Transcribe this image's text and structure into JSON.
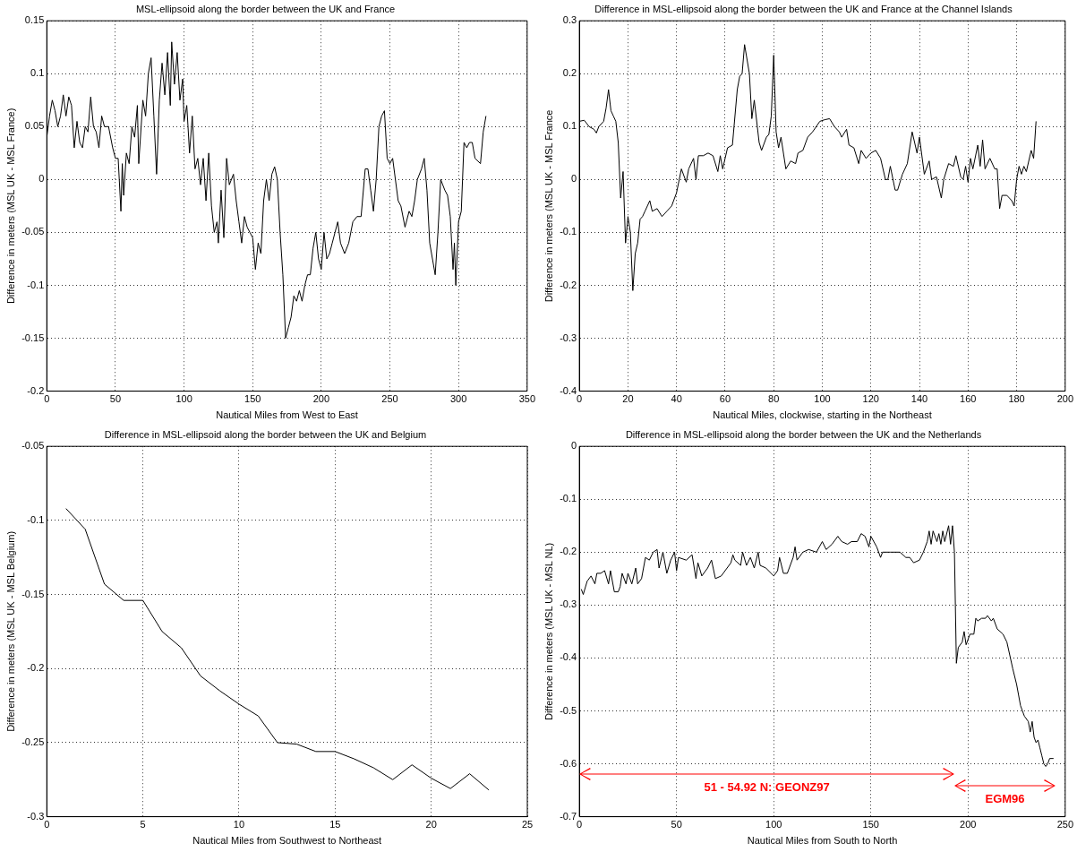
{
  "chart_data": [
    {
      "type": "line",
      "title": "MSL-ellipsoid along the border between the UK and France",
      "xlabel": "Nautical Miles from West to East",
      "ylabel": "Difference in meters (MSL UK - MSL France)",
      "color": "#000000",
      "grid": true,
      "xlim": [
        0,
        350
      ],
      "xticks": [
        0,
        50,
        100,
        150,
        200,
        250,
        300,
        350
      ],
      "ylim": [
        -0.2,
        0.15
      ],
      "yticks": [
        -0.2,
        -0.15,
        -0.1,
        -0.05,
        0,
        0.05,
        0.1,
        0.15
      ],
      "x": [
        0,
        2,
        4,
        6,
        8,
        10,
        12,
        14,
        16,
        18,
        20,
        22,
        24,
        26,
        28,
        30,
        32,
        34,
        36,
        38,
        40,
        42,
        45,
        48,
        50,
        52,
        54,
        55,
        56,
        58,
        60,
        62,
        64,
        66,
        67,
        70,
        72,
        74,
        76,
        78,
        80,
        82,
        84,
        86,
        88,
        90,
        91,
        93,
        95,
        97,
        99,
        100,
        102,
        104,
        106,
        108,
        110,
        112,
        114,
        116,
        118,
        120,
        122,
        124,
        125,
        127,
        129,
        131,
        133,
        136,
        138,
        140,
        142,
        144,
        146,
        148,
        150,
        152,
        154,
        156,
        158,
        160,
        162,
        164,
        166,
        168,
        170,
        172,
        174,
        176,
        178,
        180,
        182,
        184,
        186,
        188,
        190,
        192,
        194,
        196,
        198,
        200,
        202,
        204,
        206,
        208,
        212,
        214,
        217,
        220,
        223,
        226,
        229,
        232,
        234,
        236,
        238,
        240,
        242,
        244,
        246,
        248,
        250,
        252,
        254,
        256,
        258,
        261,
        264,
        266,
        268,
        270,
        273,
        275,
        277,
        279,
        283,
        285,
        287,
        290,
        292,
        294,
        296,
        297,
        298,
        300,
        302,
        304,
        306,
        308,
        310,
        312,
        316,
        318,
        320
      ],
      "values": [
        0.04,
        0.06,
        0.075,
        0.065,
        0.05,
        0.06,
        0.08,
        0.06,
        0.078,
        0.07,
        0.03,
        0.055,
        0.035,
        0.03,
        0.05,
        0.045,
        0.078,
        0.05,
        0.045,
        0.03,
        0.06,
        0.05,
        0.05,
        0.03,
        0.02,
        0.02,
        -0.03,
        0.015,
        -0.015,
        0.025,
        0.015,
        0.05,
        0.04,
        0.07,
        0.015,
        0.075,
        0.06,
        0.1,
        0.115,
        0.06,
        0.005,
        0.075,
        0.11,
        0.08,
        0.12,
        0.07,
        0.13,
        0.09,
        0.12,
        0.075,
        0.095,
        0.055,
        0.07,
        0.025,
        0.06,
        0.01,
        0.02,
        -0.005,
        0.02,
        -0.02,
        0.025,
        -0.025,
        -0.05,
        -0.04,
        -0.06,
        -0.01,
        -0.055,
        0.02,
        -0.005,
        0.005,
        -0.02,
        -0.04,
        -0.06,
        -0.035,
        -0.045,
        -0.05,
        -0.055,
        -0.085,
        -0.06,
        -0.07,
        -0.02,
        0,
        -0.02,
        0.005,
        0.012,
        0,
        -0.05,
        -0.09,
        -0.15,
        -0.14,
        -0.13,
        -0.11,
        -0.115,
        -0.105,
        -0.115,
        -0.1,
        -0.09,
        -0.09,
        -0.065,
        -0.05,
        -0.075,
        -0.085,
        -0.05,
        -0.075,
        -0.07,
        -0.06,
        -0.04,
        -0.06,
        -0.07,
        -0.06,
        -0.04,
        -0.035,
        -0.035,
        0.01,
        0.01,
        -0.01,
        -0.03,
        0,
        0.05,
        0.06,
        0.065,
        0.02,
        0.015,
        0.02,
        0,
        -0.02,
        -0.025,
        -0.045,
        -0.03,
        -0.035,
        -0.02,
        0,
        0.01,
        0.02,
        -0.01,
        -0.06,
        -0.09,
        -0.05,
        0,
        -0.01,
        -0.015,
        -0.035,
        -0.085,
        -0.06,
        -0.1,
        -0.04,
        -0.03,
        0.035,
        0.03,
        0.035,
        0.035,
        0.02,
        0.015,
        0.045,
        0.06
      ]
    },
    {
      "type": "line",
      "title": "Difference in MSL-ellipsoid along the border between the UK and France at the Channel Islands",
      "xlabel": "Nautical Miles, clockwise, starting in the Northeast",
      "ylabel": "Difference in meters (MSL UK - MSL France",
      "color": "#000000",
      "grid": true,
      "xlim": [
        0,
        200
      ],
      "xticks": [
        0,
        20,
        40,
        60,
        80,
        100,
        120,
        140,
        160,
        180,
        200
      ],
      "ylim": [
        -0.4,
        0.3
      ],
      "yticks": [
        -0.4,
        -0.3,
        -0.2,
        -0.1,
        0,
        0.1,
        0.2,
        0.3
      ],
      "x": [
        0,
        2,
        4,
        6,
        7,
        8,
        10,
        11,
        12,
        13,
        14,
        15,
        16,
        17,
        18,
        19,
        20,
        21,
        22,
        23,
        24,
        25,
        26,
        27,
        29,
        30,
        32,
        34,
        36,
        38,
        40,
        42,
        44,
        45,
        47,
        48,
        49,
        51,
        53,
        55,
        57,
        58,
        59,
        61,
        63,
        65,
        66,
        67,
        68,
        70,
        71,
        72,
        74,
        75,
        77,
        78,
        79,
        80,
        81,
        82,
        83,
        85,
        87,
        89,
        90,
        92,
        94,
        96,
        99,
        101,
        103,
        105,
        107,
        108,
        110,
        111,
        113,
        115,
        116,
        118,
        120,
        122,
        124,
        126,
        127,
        128,
        130,
        131,
        133,
        135,
        137,
        138,
        139,
        140,
        142,
        144,
        145,
        147,
        149,
        150,
        152,
        154,
        155,
        157,
        158,
        159,
        160,
        161,
        162,
        164,
        165,
        166,
        167,
        169,
        171,
        172,
        173,
        174,
        176,
        178,
        179,
        180,
        181,
        182,
        183,
        184,
        186,
        187,
        188
      ],
      "values": [
        0.11,
        0.112,
        0.1,
        0.095,
        0.088,
        0.1,
        0.11,
        0.135,
        0.17,
        0.13,
        0.12,
        0.11,
        0.07,
        -0.035,
        0.015,
        -0.12,
        -0.07,
        -0.1,
        -0.21,
        -0.14,
        -0.12,
        -0.075,
        -0.07,
        -0.06,
        -0.04,
        -0.06,
        -0.055,
        -0.07,
        -0.06,
        -0.05,
        -0.025,
        0.02,
        -0.005,
        0.02,
        0.04,
        0,
        0.045,
        0.045,
        0.05,
        0.045,
        0.015,
        0.045,
        0.02,
        0.06,
        0.065,
        0.17,
        0.195,
        0.2,
        0.255,
        0.2,
        0.115,
        0.15,
        0.07,
        0.055,
        0.08,
        0.085,
        0.12,
        0.235,
        0.09,
        0.06,
        0.08,
        0.02,
        0.035,
        0.03,
        0.05,
        0.055,
        0.08,
        0.09,
        0.11,
        0.113,
        0.115,
        0.1,
        0.09,
        0.08,
        0.095,
        0.065,
        0.06,
        0.03,
        0.055,
        0.04,
        0.05,
        0.055,
        0.04,
        0,
        0,
        0.025,
        -0.02,
        -0.02,
        0.01,
        0.03,
        0.09,
        0.07,
        0.05,
        0.08,
        0.01,
        0.035,
        0,
        0.005,
        -0.035,
        0,
        0.03,
        0.025,
        0.045,
        0.005,
        0,
        0.025,
        -0.005,
        0.04,
        0.02,
        0.065,
        0.025,
        0.075,
        0.02,
        0.04,
        0.02,
        0.02,
        -0.055,
        -0.03,
        -0.03,
        -0.04,
        -0.05,
        0,
        0.025,
        0.01,
        0.025,
        0.015,
        0.055,
        0.04,
        0.11
      ]
    },
    {
      "type": "line",
      "title": "Difference in MSL-ellipsoid along the border between the UK and Belgium",
      "xlabel": "Nautical Miles from Southwest to Northeast",
      "ylabel": "Difference in meters (MSL UK - MSL Belgium)",
      "color": "#000000",
      "grid": true,
      "xlim": [
        0,
        25
      ],
      "xticks": [
        0,
        5,
        10,
        15,
        20,
        25
      ],
      "ylim": [
        -0.3,
        -0.05
      ],
      "yticks": [
        -0.3,
        -0.25,
        -0.2,
        -0.15,
        -0.1,
        -0.05
      ],
      "x": [
        1,
        2,
        3,
        4,
        5,
        6,
        7,
        8,
        9,
        10,
        11,
        12,
        13,
        14,
        15,
        16,
        17,
        18,
        19,
        20,
        21,
        22,
        23
      ],
      "values": [
        -0.092,
        -0.106,
        -0.143,
        -0.154,
        -0.154,
        -0.175,
        -0.186,
        -0.205,
        -0.215,
        -0.224,
        -0.232,
        -0.25,
        -0.251,
        -0.256,
        -0.256,
        -0.261,
        -0.267,
        -0.275,
        -0.265,
        -0.274,
        -0.281,
        -0.271,
        -0.282
      ]
    },
    {
      "type": "line",
      "title": "Difference in MSL-ellipsoid along the border between the UK and the Netherlands",
      "xlabel": "Nautical Miles from South to North",
      "ylabel": "Difference in meters (MSL UK - MSL NL)",
      "color": "#000000",
      "grid": true,
      "xlim": [
        0,
        250
      ],
      "xticks": [
        0,
        50,
        100,
        150,
        200,
        250
      ],
      "ylim": [
        -0.7,
        0
      ],
      "yticks": [
        -0.7,
        -0.6,
        -0.5,
        -0.4,
        -0.3,
        -0.2,
        -0.1,
        0
      ],
      "annotations": [
        "51 - 54.92 N: GEONZ97",
        "EGM96"
      ],
      "x": [
        1,
        2,
        4,
        6,
        8,
        9,
        11,
        13,
        15,
        16,
        18,
        20,
        21,
        22,
        24,
        25,
        27,
        29,
        30,
        32,
        34,
        36,
        38,
        40,
        41,
        43,
        45,
        47,
        49,
        50,
        51,
        55,
        58,
        60,
        61,
        63,
        66,
        68,
        70,
        73,
        75,
        78,
        79,
        80,
        83,
        84,
        86,
        88,
        90,
        92,
        93,
        96,
        100,
        102,
        103,
        105,
        107,
        110,
        111,
        112,
        115,
        118,
        122,
        125,
        127,
        130,
        133,
        135,
        138,
        140,
        143,
        145,
        147,
        149,
        150,
        153,
        155,
        156,
        160,
        165,
        168,
        170,
        172,
        175,
        177,
        179,
        180,
        181,
        182,
        184,
        185,
        186,
        187,
        188,
        190,
        191,
        192,
        193,
        194,
        195,
        197,
        198,
        199,
        201,
        203,
        204,
        205,
        207,
        209,
        210,
        212,
        213,
        215,
        218,
        220,
        223,
        225,
        227,
        229,
        231,
        232,
        233,
        234,
        235,
        236,
        237,
        238,
        239,
        240,
        241,
        242,
        244
      ],
      "values": [
        -0.27,
        -0.28,
        -0.255,
        -0.245,
        -0.26,
        -0.24,
        -0.24,
        -0.235,
        -0.26,
        -0.235,
        -0.275,
        -0.275,
        -0.265,
        -0.24,
        -0.26,
        -0.24,
        -0.26,
        -0.23,
        -0.26,
        -0.25,
        -0.21,
        -0.215,
        -0.2,
        -0.195,
        -0.23,
        -0.2,
        -0.24,
        -0.215,
        -0.2,
        -0.235,
        -0.21,
        -0.215,
        -0.205,
        -0.25,
        -0.22,
        -0.245,
        -0.23,
        -0.215,
        -0.25,
        -0.245,
        -0.235,
        -0.22,
        -0.205,
        -0.215,
        -0.225,
        -0.2,
        -0.225,
        -0.21,
        -0.23,
        -0.2,
        -0.225,
        -0.23,
        -0.245,
        -0.235,
        -0.21,
        -0.24,
        -0.24,
        -0.21,
        -0.19,
        -0.215,
        -0.2,
        -0.195,
        -0.2,
        -0.18,
        -0.195,
        -0.185,
        -0.17,
        -0.18,
        -0.185,
        -0.18,
        -0.18,
        -0.165,
        -0.17,
        -0.19,
        -0.17,
        -0.19,
        -0.21,
        -0.2,
        -0.2,
        -0.2,
        -0.21,
        -0.21,
        -0.22,
        -0.215,
        -0.2,
        -0.18,
        -0.16,
        -0.185,
        -0.16,
        -0.18,
        -0.165,
        -0.185,
        -0.16,
        -0.18,
        -0.15,
        -0.185,
        -0.15,
        -0.2,
        -0.41,
        -0.38,
        -0.37,
        -0.35,
        -0.375,
        -0.355,
        -0.355,
        -0.325,
        -0.33,
        -0.325,
        -0.325,
        -0.32,
        -0.33,
        -0.325,
        -0.345,
        -0.355,
        -0.37,
        -0.42,
        -0.45,
        -0.49,
        -0.51,
        -0.52,
        -0.54,
        -0.52,
        -0.55,
        -0.56,
        -0.555,
        -0.57,
        -0.585,
        -0.6,
        -0.605,
        -0.6,
        -0.59,
        -0.59
      ]
    }
  ]
}
